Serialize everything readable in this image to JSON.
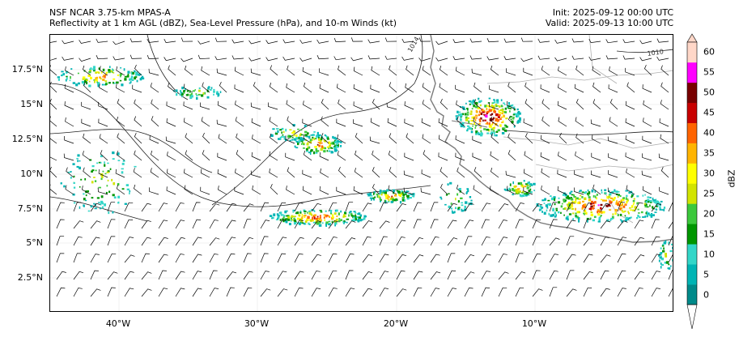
{
  "header": {
    "title_line1": "NSF NCAR 3.75-km MPAS-A",
    "title_line2": "Reflectivity at 1 km AGL (dBZ), Sea-Level Pressure (hPa), and 10-m Winds (kt)",
    "init": "Init: 2025-09-12 00:00 UTC",
    "valid": "Valid: 2025-09-13 10:00 UTC"
  },
  "axes": {
    "lat_labels": [
      "17.5°N",
      "15°N",
      "12.5°N",
      "10°N",
      "7.5°N",
      "5°N",
      "2.5°N"
    ],
    "lon_labels": [
      "40°W",
      "30°W",
      "20°W",
      "10°W"
    ]
  },
  "isobars": {
    "labels": [
      "1014",
      "1010"
    ]
  },
  "colorbar": {
    "label": "dBZ",
    "ticks": [
      "0",
      "5",
      "10",
      "15",
      "20",
      "25",
      "30",
      "35",
      "40",
      "45",
      "50",
      "55",
      "60"
    ],
    "colors": [
      "#008a8a",
      "#00b4b4",
      "#33d6c8",
      "#009600",
      "#3cc83c",
      "#d2e400",
      "#ffff00",
      "#ffb400",
      "#ff6400",
      "#c80000",
      "#780000",
      "#ff00ff",
      "#ffd7c8"
    ]
  }
}
